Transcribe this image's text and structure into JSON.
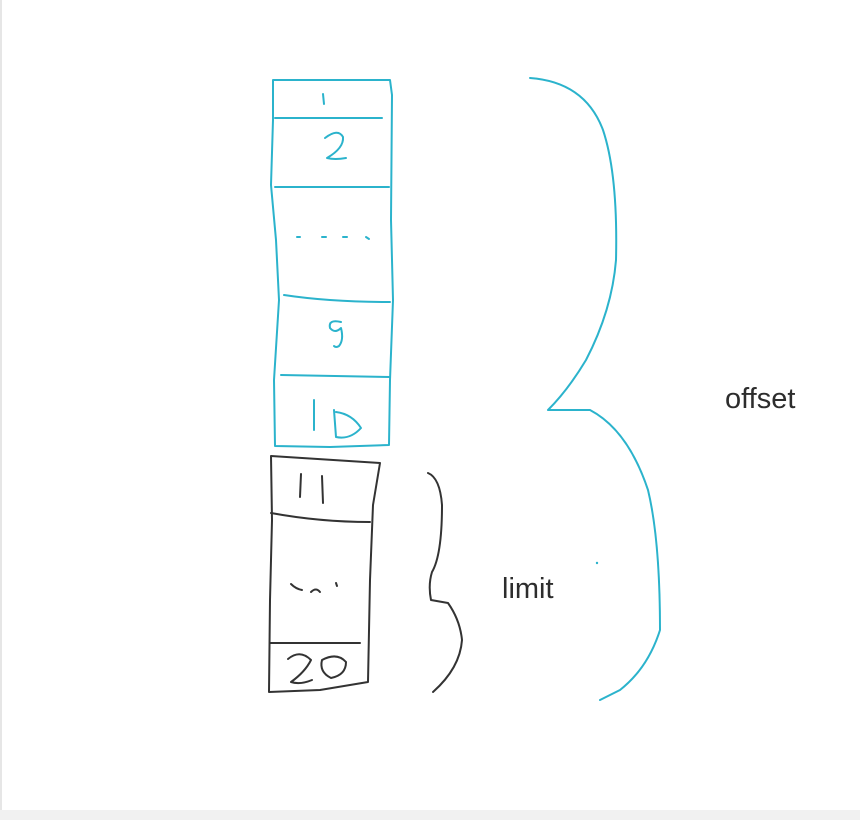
{
  "labels": {
    "offset": "offset",
    "limit": "limit"
  },
  "offset_block": {
    "color": "#2bb3cc",
    "cells": [
      "1",
      "2",
      "- - -",
      "9",
      "10"
    ]
  },
  "limit_block": {
    "color": "#333333",
    "cells": [
      "11",
      "- - -",
      "20"
    ]
  }
}
